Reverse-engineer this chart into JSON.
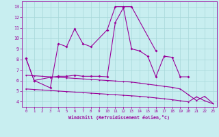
{
  "line1_x": [
    0,
    1,
    3,
    4,
    5,
    6,
    7,
    8,
    10,
    11,
    12,
    13,
    16
  ],
  "line1_y": [
    8.1,
    6.0,
    5.3,
    9.5,
    9.2,
    10.9,
    9.5,
    9.2,
    10.8,
    13.0,
    13.0,
    13.0,
    8.8
  ],
  "line2_x": [
    0,
    1,
    3,
    4,
    5,
    6,
    7,
    8,
    9,
    10,
    11,
    12,
    13,
    14,
    15,
    16,
    17,
    18,
    19,
    20
  ],
  "line2_y": [
    8.1,
    6.0,
    6.3,
    6.4,
    6.4,
    6.5,
    6.4,
    6.4,
    6.4,
    6.35,
    11.5,
    12.9,
    9.0,
    8.8,
    8.3,
    6.35,
    8.3,
    8.2,
    6.35,
    6.35
  ],
  "line3_x": [
    0,
    1,
    2,
    3,
    4,
    5,
    6,
    7,
    8,
    9,
    10,
    11,
    12,
    13,
    14,
    15,
    16,
    17,
    18,
    19,
    20,
    21,
    22,
    23
  ],
  "line3_y": [
    6.5,
    6.45,
    6.4,
    6.35,
    6.3,
    6.25,
    6.2,
    6.15,
    6.1,
    6.05,
    6.0,
    5.95,
    5.9,
    5.85,
    5.75,
    5.65,
    5.55,
    5.45,
    5.35,
    5.2,
    4.65,
    4.1,
    4.5,
    3.85
  ],
  "line4_x": [
    0,
    1,
    2,
    3,
    4,
    5,
    6,
    7,
    8,
    9,
    10,
    11,
    12,
    13,
    14,
    15,
    16,
    17,
    18,
    19,
    20,
    21,
    22,
    23
  ],
  "line4_y": [
    5.2,
    5.15,
    5.1,
    5.05,
    5.0,
    4.95,
    4.9,
    4.85,
    4.8,
    4.75,
    4.7,
    4.65,
    4.6,
    4.55,
    4.5,
    4.43,
    4.35,
    4.27,
    4.18,
    4.08,
    3.98,
    4.45,
    4.08,
    3.8
  ],
  "color": "#990099",
  "bg_color": "#c8eef0",
  "grid_color": "#a8d8da",
  "xlabel": "Windchill (Refroidissement éolien,°C)",
  "xlim": [
    -0.5,
    23.5
  ],
  "ylim": [
    3.5,
    13.5
  ],
  "yticks": [
    4,
    5,
    6,
    7,
    8,
    9,
    10,
    11,
    12,
    13
  ],
  "xticks": [
    0,
    1,
    2,
    3,
    4,
    5,
    6,
    7,
    8,
    9,
    10,
    11,
    12,
    13,
    14,
    15,
    16,
    17,
    18,
    19,
    20,
    21,
    22,
    23
  ]
}
